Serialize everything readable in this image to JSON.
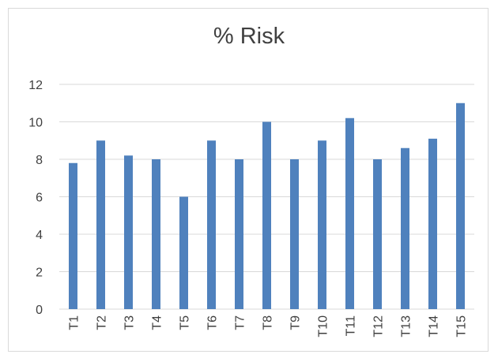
{
  "chart_data": {
    "type": "bar",
    "title": "% Risk",
    "xlabel": "",
    "ylabel": "",
    "categories": [
      "T1",
      "T2",
      "T3",
      "T4",
      "T5",
      "T6",
      "T7",
      "T8",
      "T9",
      "T10",
      "T11",
      "T12",
      "T13",
      "T14",
      "T15"
    ],
    "values": [
      7.8,
      9,
      8.2,
      8,
      6,
      9,
      8,
      10,
      8,
      9,
      10.2,
      8,
      8.6,
      9.1,
      11
    ],
    "ylim": [
      0,
      12
    ],
    "yticks": [
      "0",
      "2",
      "4",
      "6",
      "8",
      "10",
      "12"
    ],
    "grid": true,
    "legend": "none",
    "bar_color": "#4f81bd",
    "grid_color": "#d9d9d9"
  }
}
